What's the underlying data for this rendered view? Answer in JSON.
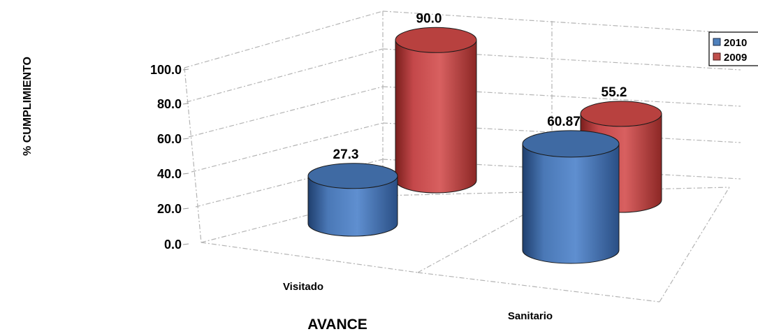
{
  "chart_data": {
    "type": "bar",
    "style": "3d-cylinder",
    "categories": [
      "Visitado",
      "Sanitario"
    ],
    "series": [
      {
        "name": "2010",
        "values": [
          27.3,
          60.87
        ],
        "labels": [
          "27.3",
          "60.87"
        ],
        "color": "#4f81bd"
      },
      {
        "name": "2009",
        "values": [
          90.0,
          55.2
        ],
        "labels": [
          "90.0",
          "55.2"
        ],
        "color": "#c0504d"
      }
    ],
    "title": "",
    "xlabel": "AVANCE",
    "ylabel": "% CUMPLIMIENTO",
    "ylim": [
      0,
      100
    ],
    "yticks": [
      "0.0",
      "20.0",
      "40.0",
      "60.0",
      "80.0",
      "100.0"
    ],
    "grid": true,
    "legend": "top-right"
  }
}
